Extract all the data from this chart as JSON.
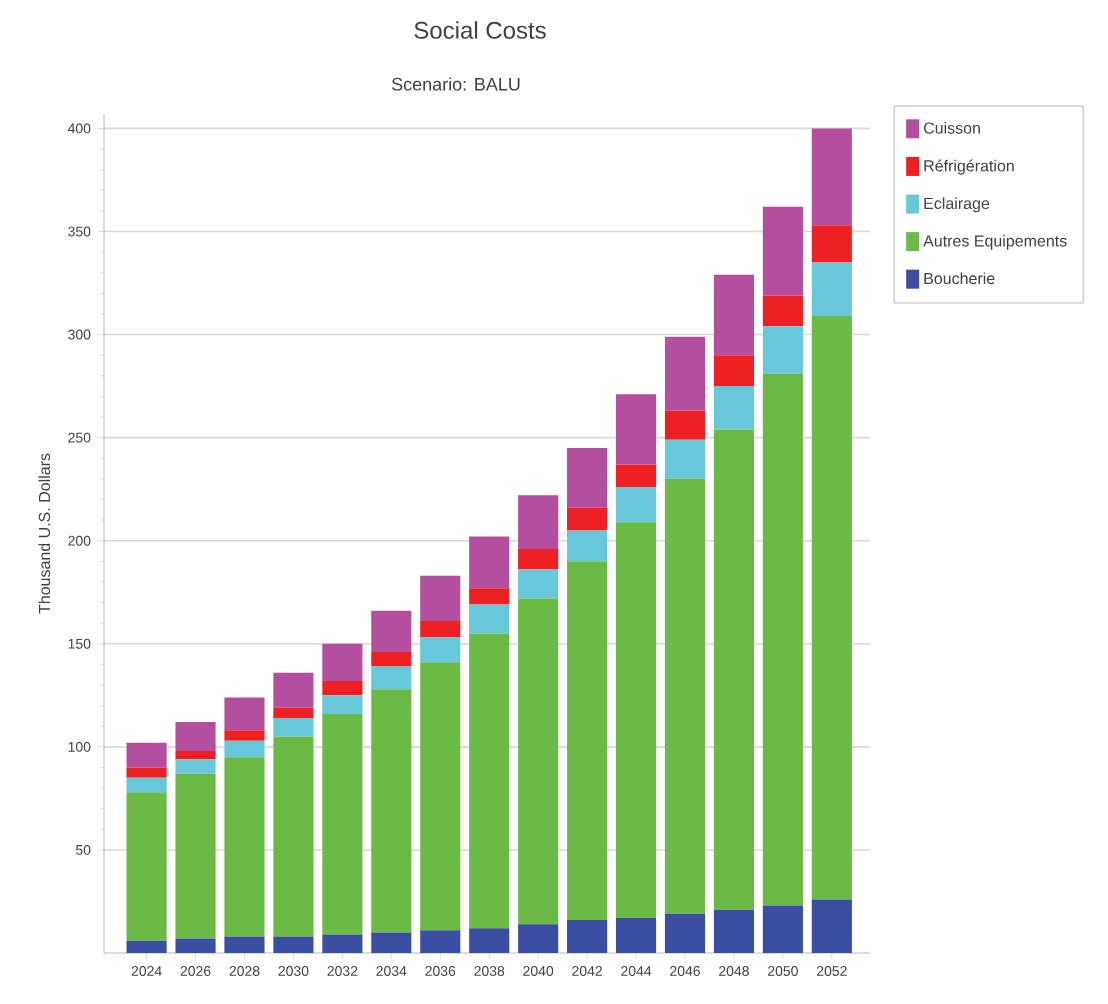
{
  "chart_data": {
    "type": "bar",
    "title": "Social Costs",
    "subtitle": "Scenario: BALU",
    "ylabel": "Thousand U.S. Dollars",
    "categories": [
      "2024",
      "2026",
      "2028",
      "2030",
      "2032",
      "2034",
      "2036",
      "2038",
      "2040",
      "2042",
      "2044",
      "2046",
      "2048",
      "2050",
      "2052"
    ],
    "stacked": true,
    "series": [
      {
        "name": "Boucherie",
        "color": "#3b4fa2",
        "values": [
          6,
          7,
          8,
          8,
          9,
          10,
          11,
          12,
          14,
          16,
          17,
          19,
          21,
          23,
          26
        ]
      },
      {
        "name": "Autres Equipements",
        "color": "#6aba45",
        "values": [
          72,
          80,
          87,
          97,
          107,
          118,
          130,
          143,
          158,
          174,
          192,
          211,
          233,
          258,
          283
        ]
      },
      {
        "name": "Eclairage",
        "color": "#66c8d8",
        "values": [
          7,
          7,
          8,
          9,
          9,
          11,
          12,
          14,
          14,
          15,
          17,
          19,
          21,
          23,
          26
        ]
      },
      {
        "name": "Réfrigération",
        "color": "#ee2024",
        "values": [
          5,
          4,
          5,
          5,
          7,
          7,
          8,
          8,
          10,
          11,
          11,
          14,
          15,
          15,
          18
        ]
      },
      {
        "name": "Cuisson",
        "color": "#b44fa0",
        "values": [
          12,
          14,
          16,
          17,
          18,
          20,
          22,
          25,
          26,
          29,
          34,
          36,
          39,
          43,
          47
        ]
      }
    ],
    "ylim": [
      0,
      407
    ],
    "yticks": [
      50,
      100,
      150,
      200,
      250,
      300,
      350,
      400
    ],
    "grid": "y",
    "legend": "top right"
  }
}
